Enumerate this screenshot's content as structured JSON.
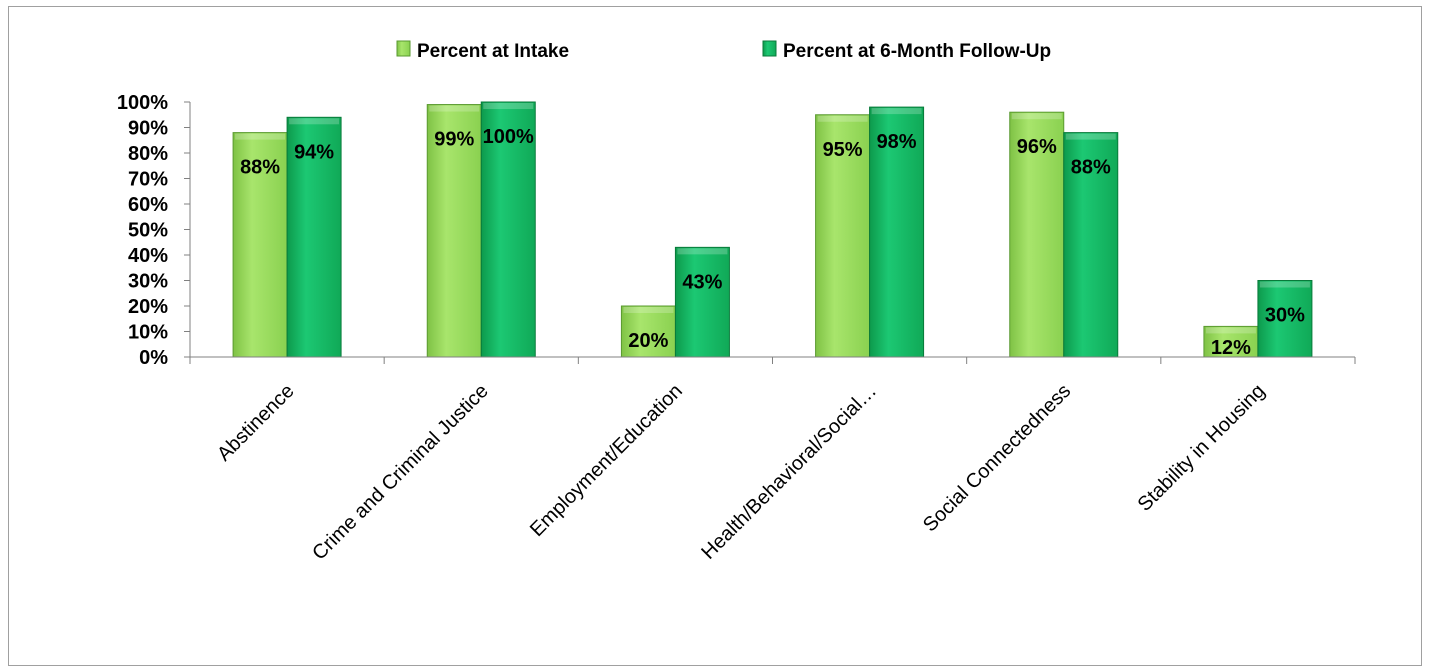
{
  "chart_data": {
    "type": "bar",
    "categories": [
      "Abstinence",
      "Crime and Criminal Justice",
      "Employment/Education",
      "Health/Behavioral/Social…",
      "Social Connectedness",
      "Stability in Housing"
    ],
    "series": [
      {
        "name": "Percent at Intake",
        "values": [
          88,
          99,
          20,
          95,
          96,
          12
        ],
        "labels": [
          "88%",
          "99%",
          "20%",
          "95%",
          "96%",
          "12%"
        ]
      },
      {
        "name": "Percent at 6-Month Follow-Up",
        "values": [
          94,
          100,
          43,
          98,
          88,
          30
        ],
        "labels": [
          "94%",
          "100%",
          "43%",
          "98%",
          "88%",
          "30%"
        ]
      }
    ],
    "ylim": [
      0,
      100
    ],
    "yticks": [
      "0%",
      "10%",
      "20%",
      "30%",
      "40%",
      "50%",
      "60%",
      "70%",
      "80%",
      "90%",
      "100%"
    ],
    "legend_position": "top",
    "grid": false,
    "colors": {
      "intake_light": "#a6e36a",
      "intake_dark": "#6fb43a",
      "followup_light": "#19c26b",
      "followup_dark": "#0a8a44"
    }
  }
}
